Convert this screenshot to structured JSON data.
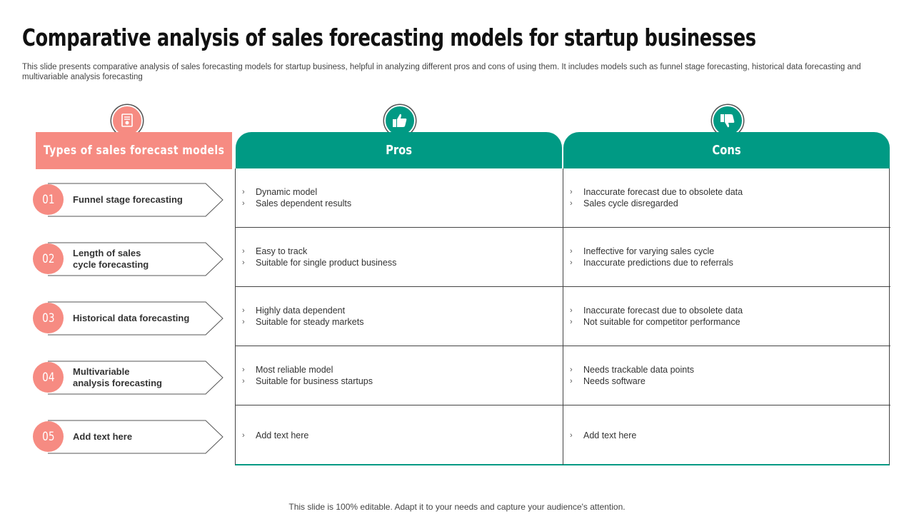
{
  "title": "Comparative analysis of sales forecasting models for startup businesses",
  "subtitle": "This slide presents comparative analysis of sales forecasting models for startup business, helpful in analyzing different pros and cons of using them. It includes models such as funnel stage forecasting, historical data forecasting and multivariable analysis forecasting",
  "headers": {
    "types": "Types of sales forecast models",
    "pros": "Pros",
    "cons": "Cons"
  },
  "icons": {
    "types": "document-certificate-icon",
    "pros": "thumbs-up-icon",
    "cons": "thumbs-down-icon"
  },
  "colors": {
    "accent_pink": "#f68b82",
    "accent_teal": "#009a84"
  },
  "rows": [
    {
      "num": "01",
      "model": "Funnel stage forecasting",
      "pros": [
        "Dynamic model",
        "Sales dependent  results"
      ],
      "cons": [
        "Inaccurate forecast due to obsolete data",
        "Sales cycle disregarded"
      ]
    },
    {
      "num": "02",
      "model": "Length of sales\ncycle forecasting",
      "pros": [
        "Easy to track",
        "Suitable for  single product business"
      ],
      "cons": [
        "Ineffective  for varying  sales cycle",
        "Inaccurate predictions due to referrals"
      ]
    },
    {
      "num": "03",
      "model": "Historical data forecasting",
      "pros": [
        "Highly data dependent",
        "Suitable for  steady markets"
      ],
      "cons": [
        "Inaccurate forecast due to obsolete data",
        "Not suitable for competitor performance"
      ]
    },
    {
      "num": "04",
      "model": "Multivariable\nanalysis forecasting",
      "pros": [
        "Most reliable  model",
        "Suitable for  business startups"
      ],
      "cons": [
        "Needs trackable data points",
        "Needs software"
      ]
    },
    {
      "num": "05",
      "model": "Add text here",
      "pros": [
        "Add text here"
      ],
      "cons": [
        "Add text here"
      ]
    }
  ],
  "footer": "This slide is 100% editable. Adapt it to your needs and capture your audience's attention."
}
